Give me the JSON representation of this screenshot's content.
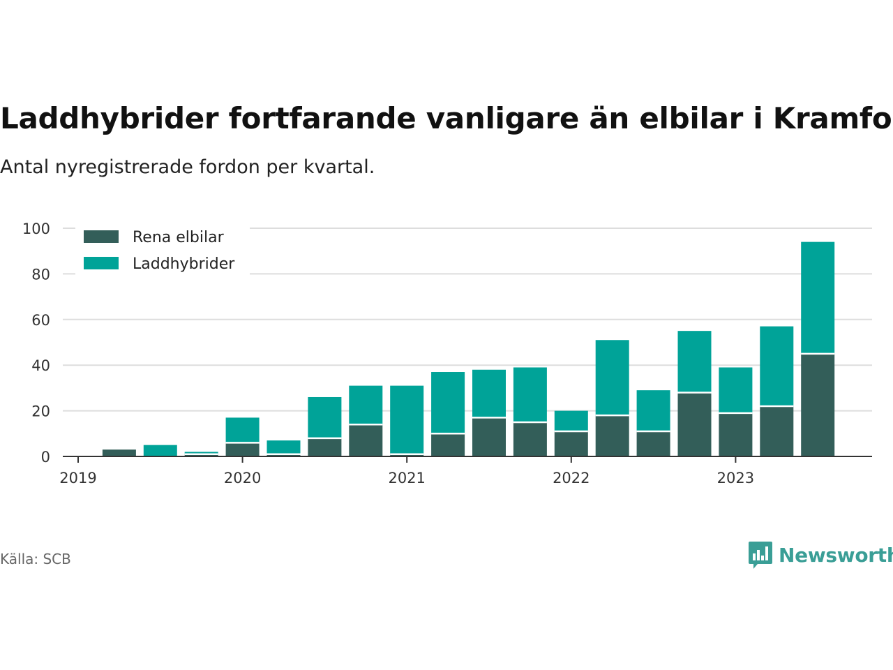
{
  "title": "Laddhybrider fortfarande vanligare än elbilar i Kramfors",
  "subtitle": "Antal nyregistrerade fordon per kvartal.",
  "source": "Källa: SCB",
  "brand": "Newsworthy",
  "colors": {
    "rena": "#335e59",
    "ladd": "#00a398",
    "brand": "#3a9e96"
  },
  "chart_data": {
    "type": "bar",
    "stacked": true,
    "title": "Laddhybrider fortfarande vanligare än elbilar i Kramfors",
    "subtitle": "Antal nyregistrerade fordon per kvartal.",
    "ylim": [
      0,
      100
    ],
    "yticks": [
      0,
      20,
      40,
      60,
      80,
      100
    ],
    "xticks": [
      "2019",
      "2020",
      "2021",
      "2022",
      "2023"
    ],
    "categories": [
      "2019 Q1",
      "2019 Q2",
      "2019 Q3",
      "2019 Q4",
      "2020 Q1",
      "2020 Q2",
      "2020 Q3",
      "2020 Q4",
      "2021 Q1",
      "2021 Q2",
      "2021 Q3",
      "2021 Q4",
      "2022 Q1",
      "2022 Q2",
      "2022 Q3",
      "2022 Q4",
      "2023 Q1",
      "2023 Q2",
      "2023 Q3"
    ],
    "legend_position": "top-left",
    "series": [
      {
        "name": "Rena elbilar",
        "values": [
          0,
          3,
          0,
          1,
          6,
          1,
          8,
          14,
          1,
          10,
          17,
          15,
          11,
          18,
          11,
          28,
          19,
          22,
          45
        ]
      },
      {
        "name": "Laddhybrider",
        "values": [
          0,
          0,
          5,
          1,
          11,
          6,
          18,
          17,
          30,
          27,
          21,
          24,
          9,
          33,
          18,
          27,
          20,
          35,
          49
        ]
      }
    ]
  }
}
